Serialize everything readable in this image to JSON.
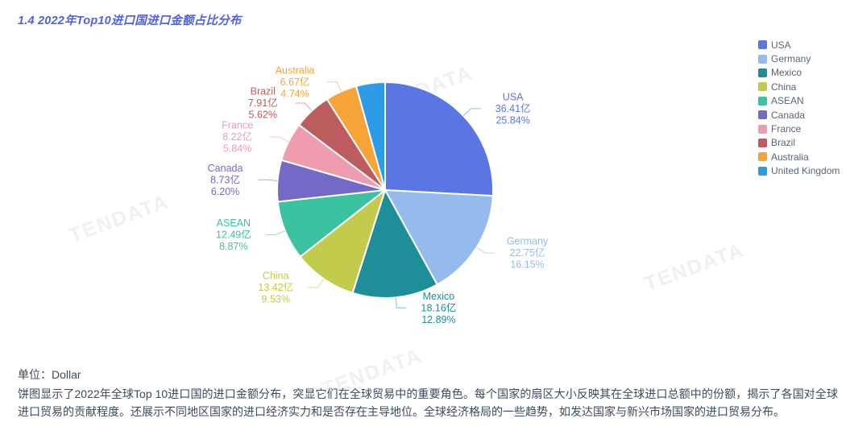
{
  "title": "1.4 2022年Top10进口国进口金额占比分布",
  "watermark": "TENDATA",
  "unit_label": "单位：Dollar",
  "description": "饼图显示了2022年全球Top 10进口国的进口金额分布，突显它们在全球贸易中的重要角色。每个国家的扇区大小反映其在全球进口总额中的份额，揭示了各国对全球进口贸易的贡献程度。还展示不同地区国家的进口经济实力和是否存在主导地位。全球经济格局的一些趋势，如发达国家与新兴市场国家的进口贸易分布。",
  "chart_data": {
    "type": "pie",
    "legend_position": "right",
    "start_angle": "top-clockwise",
    "value_unit": "亿",
    "slices": [
      {
        "name": "USA",
        "value": 36.41,
        "percent": 25.84,
        "color": "#5B76E3",
        "labeled": true
      },
      {
        "name": "Germany",
        "value": 22.75,
        "percent": 16.15,
        "color": "#94BBEB",
        "labeled": true
      },
      {
        "name": "Mexico",
        "value": 18.16,
        "percent": 12.89,
        "color": "#1E8E99",
        "labeled": true
      },
      {
        "name": "China",
        "value": 13.42,
        "percent": 9.53,
        "color": "#C3CB4D",
        "labeled": true
      },
      {
        "name": "ASEAN",
        "value": 12.49,
        "percent": 8.87,
        "color": "#3AC2A1",
        "labeled": true
      },
      {
        "name": "Canada",
        "value": 8.73,
        "percent": 6.2,
        "color": "#7569C7",
        "labeled": true
      },
      {
        "name": "France",
        "value": 8.22,
        "percent": 5.84,
        "color": "#EF9CAF",
        "labeled": true
      },
      {
        "name": "Brazil",
        "value": 7.91,
        "percent": 5.62,
        "color": "#BD5C5F",
        "labeled": true
      },
      {
        "name": "Australia",
        "value": 6.67,
        "percent": 4.74,
        "color": "#F6A437",
        "labeled": true
      },
      {
        "name": "United Kingdom",
        "color": "#2D9BE8",
        "labeled": false
      }
    ]
  }
}
